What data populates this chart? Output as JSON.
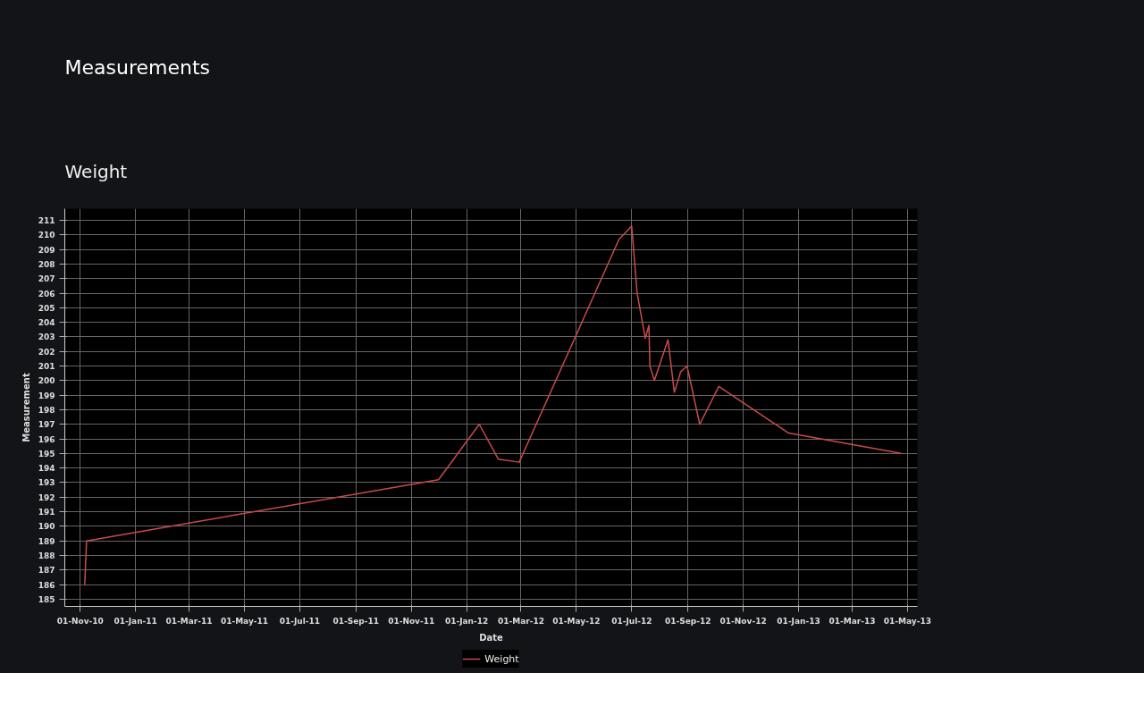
{
  "chart_data": {
    "type": "line",
    "title": "Measurements",
    "subtitle": "Weight",
    "xlabel": "Date",
    "ylabel": "Measurement",
    "x": [
      "2010-11-06",
      "2010-11-08",
      "2011-12-01",
      "2012-01-15",
      "2012-02-05",
      "2012-02-28",
      "2012-06-17",
      "2012-07-01",
      "2012-07-07",
      "2012-07-16",
      "2012-07-20",
      "2012-07-21",
      "2012-07-26",
      "2012-08-10",
      "2012-08-17",
      "2012-08-24",
      "2012-08-31",
      "2012-09-14",
      "2012-10-05",
      "2012-12-21",
      "2013-04-24"
    ],
    "series": [
      {
        "name": "Weight",
        "color": "#c84b4b",
        "values": [
          186,
          189,
          193.2,
          197,
          194.6,
          194.4,
          209.7,
          210.6,
          206,
          202.9,
          203.8,
          201,
          200,
          202.8,
          199.2,
          200.6,
          201,
          197,
          199.6,
          196.4,
          195
        ]
      }
    ],
    "xlim": [
      "2010-10-15",
      "2013-05-12"
    ],
    "xticks": [
      {
        "value": "2010-11-01",
        "label": "01-Nov-10"
      },
      {
        "value": "2011-01-01",
        "label": "01-Jan-11"
      },
      {
        "value": "2011-03-01",
        "label": "01-Mar-11"
      },
      {
        "value": "2011-05-01",
        "label": "01-May-11"
      },
      {
        "value": "2011-07-01",
        "label": "01-Jul-11"
      },
      {
        "value": "2011-09-01",
        "label": "01-Sep-11"
      },
      {
        "value": "2011-11-01",
        "label": "01-Nov-11"
      },
      {
        "value": "2012-01-01",
        "label": "01-Jan-12"
      },
      {
        "value": "2012-03-01",
        "label": "01-Mar-12"
      },
      {
        "value": "2012-05-01",
        "label": "01-May-12"
      },
      {
        "value": "2012-07-01",
        "label": "01-Jul-12"
      },
      {
        "value": "2012-09-01",
        "label": "01-Sep-12"
      },
      {
        "value": "2012-11-01",
        "label": "01-Nov-12"
      },
      {
        "value": "2013-01-01",
        "label": "01-Jan-13"
      },
      {
        "value": "2013-03-01",
        "label": "01-Mar-13"
      },
      {
        "value": "2013-05-01",
        "label": "01-May-13"
      }
    ],
    "ylim": [
      184.5,
      211.8
    ],
    "yticks": [
      185,
      186,
      187,
      188,
      189,
      190,
      191,
      192,
      193,
      194,
      195,
      196,
      197,
      198,
      199,
      200,
      201,
      202,
      203,
      204,
      205,
      206,
      207,
      208,
      209,
      210,
      211
    ],
    "grid": true,
    "legend": "bottom"
  }
}
